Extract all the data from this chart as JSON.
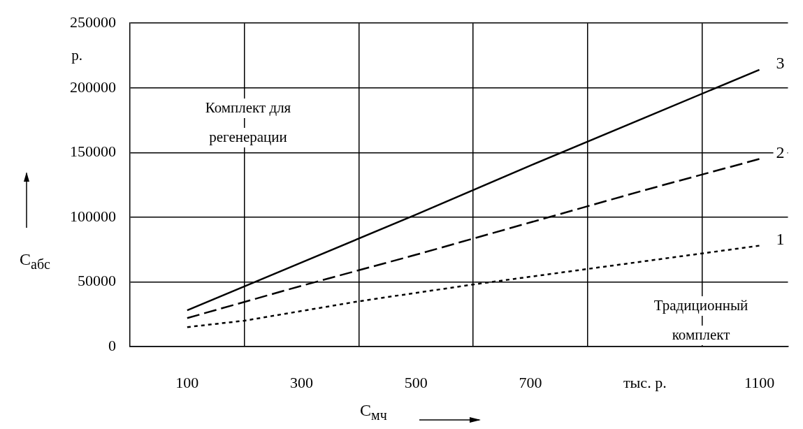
{
  "chart_data": {
    "type": "line",
    "xlabel": "C$_{мч}$",
    "ylabel": "C$_{абс}$",
    "series": [
      {
        "name": "1",
        "color": "#000000",
        "line_style": "dotted",
        "x": [
          100,
          200,
          400,
          600,
          800,
          1100
        ],
        "values": [
          15000,
          20000,
          35000,
          48000,
          60000,
          78000
        ]
      },
      {
        "name": "2",
        "color": "#000000",
        "line_style": "dashed",
        "x": [
          100,
          300,
          500,
          700,
          900,
          1100
        ],
        "values": [
          22000,
          47000,
          71000,
          96000,
          121000,
          145000
        ]
      },
      {
        "name": "3",
        "color": "#000000",
        "line_style": "solid",
        "x": [
          100,
          300,
          500,
          700,
          900,
          1100
        ],
        "values": [
          28000,
          65000,
          102000,
          140000,
          177000,
          214000
        ]
      }
    ],
    "xlim": [
      0,
      1150
    ],
    "xticks": [
      100,
      {
        "value": 200,
        "label": null
      },
      300,
      {
        "value": 400,
        "label": null
      },
      500,
      {
        "value": 600,
        "label": null
      },
      700,
      {
        "value": 800,
        "label": null
      },
      {
        "value": 900,
        "label": "тыс. р."
      },
      {
        "value": 1000,
        "label": null
      },
      1100
    ],
    "ylim": [
      0,
      250000
    ],
    "yticks": [
      0,
      50000,
      100000,
      150000,
      200000,
      250000
    ],
    "grid": true,
    "legend": false,
    "marker": "none",
    "annotations": [
      "р.",
      "Комплект для регенерации",
      "Традиционный комплект"
    ]
  }
}
